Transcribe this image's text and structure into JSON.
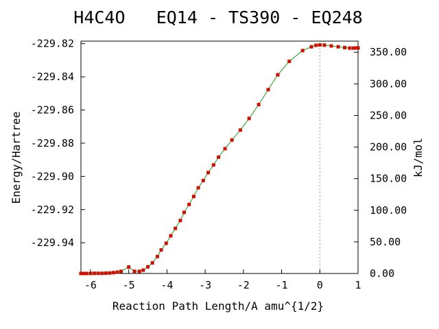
{
  "chart_data": {
    "type": "line",
    "title": "H4C4O   EQ14 - TS390 - EQ248",
    "xlabel": "Reaction Path Length/A amu^{1/2}",
    "ylabel": "Energy/Hartree",
    "y2label": "kJ/mol",
    "xlim": [
      -6.25,
      1.0
    ],
    "ylim": [
      -229.9585,
      -229.8185
    ],
    "y2lim": [
      0,
      367.6
    ],
    "xticks": [
      "-6",
      "-5",
      "-4",
      "-3",
      "-2",
      "-1",
      "0",
      "1"
    ],
    "yticks": [
      "-229.82",
      "-229.84",
      "-229.86",
      "-229.88",
      "-229.90",
      "-229.92",
      "-229.94"
    ],
    "y2ticks": [
      "0.00",
      "50.00",
      "100.00",
      "150.00",
      "200.00",
      "250.00",
      "300.00",
      "350.00"
    ],
    "ts_marker_x": 0.0,
    "colors": {
      "line": "#1a9a1a",
      "points": "#cc1100",
      "ts_marker": "#999999"
    },
    "series": [
      {
        "points": [
          [
            -6.25,
            -229.9585
          ],
          [
            -6.2,
            -229.9585
          ],
          [
            -6.15,
            -229.9585
          ],
          [
            -6.1,
            -229.9585
          ],
          [
            -6.0,
            -229.9585
          ],
          [
            -5.9,
            -229.9584
          ],
          [
            -5.8,
            -229.9584
          ],
          [
            -5.7,
            -229.9584
          ],
          [
            -5.6,
            -229.9583
          ],
          [
            -5.5,
            -229.9582
          ],
          [
            -5.4,
            -229.958
          ],
          [
            -5.3,
            -229.9577
          ],
          [
            -5.2,
            -229.9572
          ],
          [
            -5.0,
            -229.9546
          ],
          [
            -4.85,
            -229.9572
          ],
          [
            -4.72,
            -229.9572
          ],
          [
            -4.62,
            -229.9565
          ],
          [
            -4.5,
            -229.9545
          ],
          [
            -4.38,
            -229.9521
          ],
          [
            -4.25,
            -229.9483
          ],
          [
            -4.15,
            -229.9443
          ],
          [
            -4.02,
            -229.9403
          ],
          [
            -3.9,
            -229.9358
          ],
          [
            -3.78,
            -229.9313
          ],
          [
            -3.65,
            -229.9266
          ],
          [
            -3.55,
            -229.9217
          ],
          [
            -3.42,
            -229.9169
          ],
          [
            -3.3,
            -229.9121
          ],
          [
            -3.18,
            -229.9069
          ],
          [
            -3.05,
            -229.9025
          ],
          [
            -2.92,
            -229.8977
          ],
          [
            -2.78,
            -229.8931
          ],
          [
            -2.65,
            -229.8884
          ],
          [
            -2.48,
            -229.8833
          ],
          [
            -2.3,
            -229.8781
          ],
          [
            -2.08,
            -229.8721
          ],
          [
            -1.85,
            -229.8651
          ],
          [
            -1.6,
            -229.8567
          ],
          [
            -1.35,
            -229.8477
          ],
          [
            -1.1,
            -229.8388
          ],
          [
            -0.8,
            -229.8307
          ],
          [
            -0.45,
            -229.8242
          ],
          [
            -0.22,
            -229.8219
          ],
          [
            -0.1,
            -229.821
          ],
          [
            0.0,
            -229.8208
          ],
          [
            0.12,
            -229.8209
          ],
          [
            0.3,
            -229.8214
          ],
          [
            0.48,
            -229.8219
          ],
          [
            0.65,
            -229.8224
          ],
          [
            0.78,
            -229.8227
          ],
          [
            0.88,
            -229.8227
          ],
          [
            0.95,
            -229.8226
          ],
          [
            1.0,
            -229.8226
          ]
        ]
      }
    ]
  }
}
